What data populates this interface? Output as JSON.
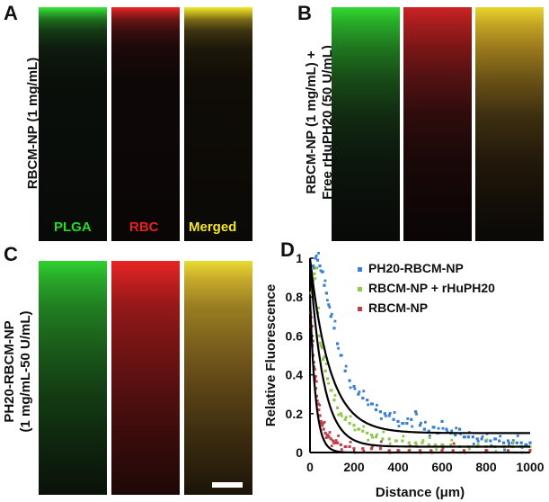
{
  "figure": {
    "panel_letters": [
      "A",
      "B",
      "C",
      "D"
    ],
    "panel_a": {
      "side_label": "RBCM-NP (1 mg/mL)",
      "channel_labels": [
        "PLGA",
        "RBC",
        "Merged"
      ]
    },
    "panel_b": {
      "side_label_line1": "RBCM-NP (1 mg/mL) +",
      "side_label_line2": "Free rHuPH20 (50 U/mL)"
    },
    "panel_c": {
      "side_label_line1": "PH20-RBCM-NP",
      "side_label_line2": "(1 mg/mL-50 U/mL)"
    },
    "colors": {
      "plga": "#22dd22",
      "rbc": "#e52222",
      "merged": "#f2e626",
      "ph20_marker": "#3a7fd0",
      "rhuph20_marker": "#8fc84a",
      "rbcmnp_marker": "#c0404a",
      "fit_line": "#000000"
    }
  },
  "chart_data": {
    "type": "scatter",
    "title": "",
    "xlabel": "Distance (μm)",
    "ylabel": "Relative Fluorescence",
    "xlim": [
      0,
      1000
    ],
    "ylim": [
      0,
      1
    ],
    "xticks": [
      "0",
      "200",
      "400",
      "600",
      "800",
      "1000"
    ],
    "yticks": [
      "0",
      "0.2",
      "0.4",
      "0.6",
      "0.8",
      "1"
    ],
    "series": [
      {
        "name": "PH20-RBCM-NP",
        "color": "#3a7fd0",
        "fit": {
          "a": 0.9,
          "tau": 90,
          "c": 0.1
        },
        "x": [
          5,
          15,
          25,
          35,
          45,
          55,
          65,
          75,
          85,
          95,
          110,
          125,
          140,
          160,
          180,
          200,
          220,
          240,
          260,
          280,
          300,
          320,
          340,
          360,
          380,
          400,
          420,
          440,
          460,
          480,
          500,
          520,
          540,
          560,
          580,
          600,
          620,
          640,
          660,
          680,
          700,
          720,
          740,
          760,
          780,
          800,
          820,
          840,
          860,
          880,
          900,
          920,
          940,
          960,
          980,
          1000
        ],
        "y": [
          0.93,
          0.96,
          1.0,
          0.99,
          0.96,
          0.93,
          0.86,
          0.82,
          0.76,
          0.7,
          0.64,
          0.56,
          0.5,
          0.42,
          0.37,
          0.34,
          0.3,
          0.28,
          0.27,
          0.25,
          0.22,
          0.21,
          0.2,
          0.19,
          0.17,
          0.16,
          0.15,
          0.15,
          0.17,
          0.21,
          0.14,
          0.12,
          0.11,
          0.13,
          0.1,
          0.16,
          0.12,
          0.1,
          0.09,
          0.12,
          0.08,
          0.08,
          0.08,
          0.07,
          0.07,
          0.06,
          0.06,
          0.07,
          0.06,
          0.05,
          0.06,
          0.05,
          0.05,
          0.05,
          0.04,
          0.05
        ]
      },
      {
        "name": "RBCM-NP + rHuPH20",
        "color": "#8fc84a",
        "fit": {
          "a": 0.95,
          "tau": 60,
          "c": 0.03
        },
        "x": [
          5,
          12,
          20,
          28,
          35,
          42,
          50,
          60,
          70,
          80,
          95,
          110,
          125,
          140,
          160,
          180,
          200,
          220,
          240,
          260,
          280,
          300,
          330,
          360,
          390,
          420,
          450,
          480,
          510,
          540,
          570,
          600,
          640,
          680,
          720,
          760,
          800,
          840,
          880,
          920,
          960,
          1000
        ],
        "y": [
          0.82,
          0.85,
          0.92,
          0.95,
          0.72,
          0.6,
          0.55,
          0.48,
          0.42,
          0.38,
          0.32,
          0.27,
          0.23,
          0.2,
          0.17,
          0.15,
          0.14,
          0.12,
          0.11,
          0.1,
          0.09,
          0.08,
          0.07,
          0.07,
          0.06,
          0.06,
          0.05,
          0.05,
          0.05,
          0.04,
          0.04,
          0.04,
          0.04,
          0.03,
          0.03,
          0.03,
          0.03,
          0.03,
          0.03,
          0.03,
          0.03,
          0.03
        ]
      },
      {
        "name": "RBCM-NP",
        "color": "#c0404a",
        "fit": {
          "a": 0.8,
          "tau": 25,
          "c": 0.0
        },
        "x": [
          2,
          6,
          10,
          14,
          18,
          22,
          26,
          30,
          35,
          40,
          45,
          50,
          56,
          62,
          70,
          78,
          86,
          95,
          105,
          115,
          125,
          140,
          160,
          180,
          200,
          240,
          280,
          320,
          360,
          400,
          450,
          500,
          550,
          600,
          650,
          700,
          800,
          900,
          1000
        ],
        "y": [
          0.72,
          0.65,
          0.55,
          0.5,
          0.44,
          0.38,
          0.33,
          0.29,
          0.25,
          0.22,
          0.19,
          0.16,
          0.14,
          0.12,
          0.1,
          0.09,
          0.08,
          0.07,
          0.06,
          0.05,
          0.05,
          0.04,
          0.03,
          0.03,
          0.02,
          0.02,
          0.02,
          0.02,
          0.01,
          0.01,
          0.01,
          0.01,
          0.01,
          0.01,
          0.01,
          0.01,
          0.01,
          0.01,
          0.01
        ]
      }
    ],
    "legend_position": "top-right"
  }
}
